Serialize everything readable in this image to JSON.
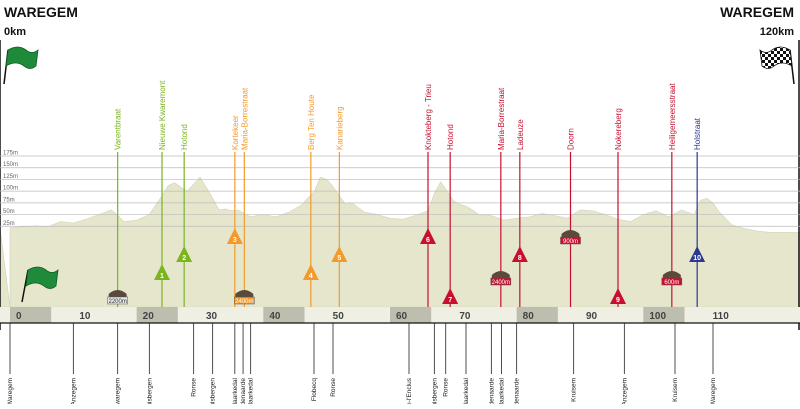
{
  "start": {
    "city": "WAREGEM",
    "km": "0km"
  },
  "finish": {
    "city": "WAREGEM",
    "km": "120km"
  },
  "colors": {
    "terrain": "#e6e6cc",
    "km_bar": "#bebeae",
    "grid": "#bbbbbb",
    "climb_green": "#7ab51d",
    "climb_orange": "#f39a2b",
    "climb_red": "#c8102e",
    "climb_blue": "#2b3990",
    "cobbles": "#5a4a3a"
  },
  "chart_data": {
    "type": "area",
    "xlabel": "",
    "ylabel": "",
    "xlim": [
      0,
      120
    ],
    "ylim": [
      0,
      175
    ],
    "y_ticks": [
      "25m",
      "50m",
      "75m",
      "100m",
      "125m",
      "150m",
      "175m"
    ],
    "x_ticks": [
      "0",
      "10",
      "20",
      "30",
      "40",
      "50",
      "60",
      "70",
      "80",
      "90",
      "100",
      "110"
    ],
    "elevation_profile": {
      "km": [
        0,
        2,
        4,
        6,
        8,
        10,
        12,
        14,
        16,
        17,
        18,
        20,
        22,
        24,
        25,
        26,
        27,
        28,
        29,
        30,
        32,
        33,
        34,
        35,
        36,
        37,
        38,
        39,
        40,
        42,
        44,
        46,
        47,
        48,
        49,
        50,
        51,
        52,
        53,
        54,
        56,
        58,
        60,
        62,
        64,
        66,
        67,
        68,
        69,
        70,
        71,
        72,
        73,
        74,
        76,
        78,
        80,
        82,
        84,
        86,
        88,
        90,
        92,
        94,
        96,
        98,
        100,
        102,
        104,
        106,
        108,
        109,
        110,
        111,
        112,
        114,
        116,
        118,
        120
      ],
      "alt_m": [
        22,
        24,
        26,
        24,
        35,
        32,
        40,
        50,
        60,
        48,
        35,
        38,
        50,
        90,
        112,
        118,
        108,
        100,
        115,
        130,
        85,
        60,
        62,
        58,
        60,
        52,
        45,
        48,
        50,
        45,
        55,
        70,
        85,
        98,
        130,
        125,
        110,
        90,
        72,
        75,
        55,
        50,
        42,
        40,
        48,
        58,
        95,
        120,
        100,
        80,
        72,
        68,
        60,
        50,
        48,
        38,
        42,
        45,
        52,
        48,
        42,
        60,
        58,
        50,
        40,
        35,
        50,
        58,
        45,
        60,
        50,
        80,
        85,
        75,
        55,
        28,
        20,
        15,
        12
      ]
    },
    "climbs": [
      {
        "name": "Varentbraat",
        "km": 17,
        "num": "",
        "color": "green",
        "kind": "cobbles",
        "label": "2200m"
      },
      {
        "name": "Nieuwe Kwaremont",
        "km": 24,
        "num": "1",
        "color": "green",
        "kind": "climb"
      },
      {
        "name": "Hotond",
        "km": 27.5,
        "num": "2",
        "color": "green",
        "kind": "climb"
      },
      {
        "name": "Kortekeer",
        "km": 35.5,
        "num": "3",
        "color": "orange",
        "kind": "climb"
      },
      {
        "name": "Maria-Borrestraat",
        "km": 37,
        "num": "",
        "color": "orange",
        "kind": "cobbles",
        "label": "2400m"
      },
      {
        "name": "Berg Ten Houte",
        "km": 47.5,
        "num": "4",
        "color": "orange",
        "kind": "climb"
      },
      {
        "name": "Kanarieberg",
        "km": 52,
        "num": "5",
        "color": "orange",
        "kind": "climb"
      },
      {
        "name": "Knokteberg - Trieu",
        "km": 66,
        "num": "6",
        "color": "red",
        "kind": "climb"
      },
      {
        "name": "Hotond",
        "km": 69.5,
        "num": "7",
        "color": "red",
        "kind": "climb"
      },
      {
        "name": "Maria-Borrestraat",
        "km": 77.5,
        "num": "",
        "color": "red",
        "kind": "cobbles",
        "label": "2400m"
      },
      {
        "name": "Ladeuze",
        "km": 80.5,
        "num": "8",
        "color": "red",
        "kind": "climb"
      },
      {
        "name": "Doorn",
        "km": 88.5,
        "num": "",
        "color": "red",
        "kind": "cobbles",
        "label": "900m"
      },
      {
        "name": "Nokereberg",
        "km": 96,
        "num": "9",
        "color": "red",
        "kind": "climb"
      },
      {
        "name": "Heiligemeersstraat",
        "km": 104.5,
        "num": "",
        "color": "red",
        "kind": "cobbles",
        "label": "600m"
      },
      {
        "name": "Holstraat",
        "km": 108.5,
        "num": "10",
        "color": "blue",
        "kind": "climb"
      }
    ],
    "places": [
      {
        "name": "Waregem",
        "km": 0
      },
      {
        "name": "Anzegem",
        "km": 10
      },
      {
        "name": "Kwaregem",
        "km": 17
      },
      {
        "name": "Kluisbergen",
        "km": 22
      },
      {
        "name": "Ronse",
        "km": 29
      },
      {
        "name": "Kluisbergen",
        "km": 32
      },
      {
        "name": "Maarkedal",
        "km": 35.5
      },
      {
        "name": "Oudenaarde",
        "km": 36.8
      },
      {
        "name": "Maarkedal",
        "km": 38
      },
      {
        "name": "Flobecq",
        "km": 48
      },
      {
        "name": "Ronse",
        "km": 51
      },
      {
        "name": "Mont-de-l'Enclus",
        "km": 63
      },
      {
        "name": "Kluisbergen",
        "km": 67
      },
      {
        "name": "Ronse",
        "km": 68.8
      },
      {
        "name": "Maarkedal",
        "km": 72
      },
      {
        "name": "Oudenaarde",
        "km": 76
      },
      {
        "name": "Maarkedal",
        "km": 77.6
      },
      {
        "name": "Oudenaarde",
        "km": 80
      },
      {
        "name": "Kruisem",
        "km": 89
      },
      {
        "name": "Anzegem",
        "km": 97
      },
      {
        "name": "Kruisem",
        "km": 105
      },
      {
        "name": "Waregem",
        "km": 111
      }
    ]
  }
}
